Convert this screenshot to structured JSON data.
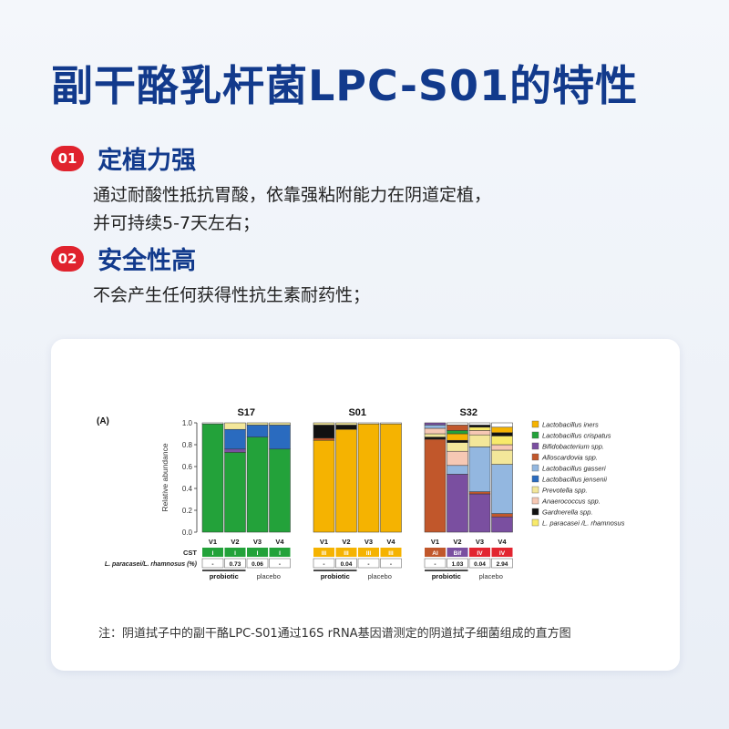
{
  "title": "副干酪乳杆菌LPC-S01的特性",
  "features": [
    {
      "num": "01",
      "head": "定植力强",
      "desc": [
        "通过耐酸性抵抗胃酸，依靠强粘附能力在阴道定植，",
        "并可持续5-7天左右；"
      ]
    },
    {
      "num": "02",
      "head": "安全性高",
      "desc": [
        "不会产生任何获得性抗生素耐药性；"
      ]
    }
  ],
  "note": "注：阴道拭子中的副干酪LPC-S01通过16S rRNA基因谱测定的阴道拭子细菌组成的直方图",
  "chart_data": {
    "type": "bar",
    "stacked": true,
    "panel_label": "(A)",
    "ylabel": "Relative abundance",
    "ylim": [
      0,
      1.0
    ],
    "yticks": [
      "0.0",
      "0.2",
      "0.4",
      "0.6",
      "0.8",
      "1.0"
    ],
    "visits": [
      "V1",
      "V2",
      "V3",
      "V4"
    ],
    "row_labels": {
      "cst": "CST",
      "ratio": "L. paracasei/L. rhamnosus  (%)"
    },
    "group_labels": {
      "probiotic": "probiotic",
      "placebo": "placebo"
    },
    "legend": {
      "position": "right",
      "entries": [
        {
          "name": "Lactobacillus iners",
          "color": "#f5b301"
        },
        {
          "name": "Lactobacillus crispatus",
          "color": "#23a23a"
        },
        {
          "name": "Bifidobacterium spp.",
          "color": "#7a4fa0"
        },
        {
          "name": "Alloscardovia spp.",
          "color": "#c1572b"
        },
        {
          "name": "Lactobacillus gasseri",
          "color": "#93b7e0"
        },
        {
          "name": "Lactobacillus jensenii",
          "color": "#2a6bbf"
        },
        {
          "name": "Prevotella spp.",
          "color": "#f3e79a"
        },
        {
          "name": "Anaerococcus spp.",
          "color": "#f6c8b4"
        },
        {
          "name": "Gardnerella spp.",
          "color": "#111111"
        },
        {
          "name": "L. paracasei /L. rhamnosus",
          "color": "#f8ea6a"
        }
      ]
    },
    "subjects": [
      {
        "name": "S17",
        "bars": [
          [
            [
              "Lactobacillus crispatus",
              0.99
            ]
          ],
          [
            [
              "Lactobacillus crispatus",
              0.73
            ],
            [
              "Bifidobacterium spp.",
              0.03
            ],
            [
              "Lactobacillus jensenii",
              0.18
            ],
            [
              "Prevotella spp.",
              0.06
            ]
          ],
          [
            [
              "Lactobacillus crispatus",
              0.87
            ],
            [
              "Lactobacillus jensenii",
              0.11
            ],
            [
              "Prevotella spp.",
              0.02
            ]
          ],
          [
            [
              "Lactobacillus crispatus",
              0.76
            ],
            [
              "Lactobacillus jensenii",
              0.22
            ],
            [
              "Prevotella spp.",
              0.02
            ]
          ]
        ],
        "cst": [
          "I",
          "I",
          "I",
          "I"
        ],
        "cst_colors": [
          "#23a23a",
          "#23a23a",
          "#23a23a",
          "#23a23a"
        ],
        "ratio": [
          "-",
          "0.73",
          "0.06",
          "-"
        ]
      },
      {
        "name": "S01",
        "bars": [
          [
            [
              "Lactobacillus iners",
              0.84
            ],
            [
              "Alloscardovia spp.",
              0.02
            ],
            [
              "Gardnerella spp.",
              0.12
            ],
            [
              "Prevotella spp.",
              0.02
            ]
          ],
          [
            [
              "Lactobacillus iners",
              0.94
            ],
            [
              "Gardnerella spp.",
              0.04
            ],
            [
              "Prevotella spp.",
              0.02
            ]
          ],
          [
            [
              "Lactobacillus iners",
              0.99
            ]
          ],
          [
            [
              "Lactobacillus iners",
              0.99
            ]
          ]
        ],
        "cst": [
          "III",
          "III",
          "III",
          "III"
        ],
        "cst_colors": [
          "#f5b301",
          "#f5b301",
          "#f5b301",
          "#f5b301"
        ],
        "ratio": [
          "-",
          "0.04",
          "-",
          "-"
        ]
      },
      {
        "name": "S32",
        "bars": [
          [
            [
              "Alloscardovia spp.",
              0.85
            ],
            [
              "Gardnerella spp.",
              0.02
            ],
            [
              "Prevotella spp.",
              0.03
            ],
            [
              "Anaerococcus spp.",
              0.05
            ],
            [
              "Lactobacillus gasseri",
              0.03
            ],
            [
              "Bifidobacterium spp.",
              0.02
            ]
          ],
          [
            [
              "Bifidobacterium spp.",
              0.53
            ],
            [
              "Lactobacillus gasseri",
              0.08
            ],
            [
              "Anaerococcus spp.",
              0.13
            ],
            [
              "Prevotella spp.",
              0.08
            ],
            [
              "Gardnerella spp.",
              0.02
            ],
            [
              "Lactobacillus iners",
              0.06
            ],
            [
              "Lactobacillus crispatus",
              0.03
            ],
            [
              "Alloscardovia spp.",
              0.05
            ]
          ],
          [
            [
              "Bifidobacterium spp.",
              0.35
            ],
            [
              "Alloscardovia spp.",
              0.02
            ],
            [
              "Lactobacillus gasseri",
              0.41
            ],
            [
              "Prevotella spp.",
              0.11
            ],
            [
              "Anaerococcus spp.",
              0.04
            ],
            [
              "L. paracasei /L. rhamnosus",
              0.03
            ],
            [
              "Gardnerella spp.",
              0.02
            ]
          ],
          [
            [
              "Bifidobacterium spp.",
              0.14
            ],
            [
              "Alloscardovia spp.",
              0.03
            ],
            [
              "Lactobacillus gasseri",
              0.45
            ],
            [
              "Prevotella spp.",
              0.13
            ],
            [
              "Anaerococcus spp.",
              0.05
            ],
            [
              "L. paracasei /L. rhamnosus",
              0.08
            ],
            [
              "Gardnerella spp.",
              0.03
            ],
            [
              "Lactobacillus iners",
              0.05
            ]
          ]
        ],
        "cst": [
          "AI",
          "Bif",
          "IV",
          "IV"
        ],
        "cst_colors": [
          "#c1572b",
          "#7a4fa0",
          "#e22530",
          "#e22530"
        ],
        "ratio": [
          "-",
          "1.03",
          "0.04",
          "2.94"
        ]
      }
    ]
  }
}
